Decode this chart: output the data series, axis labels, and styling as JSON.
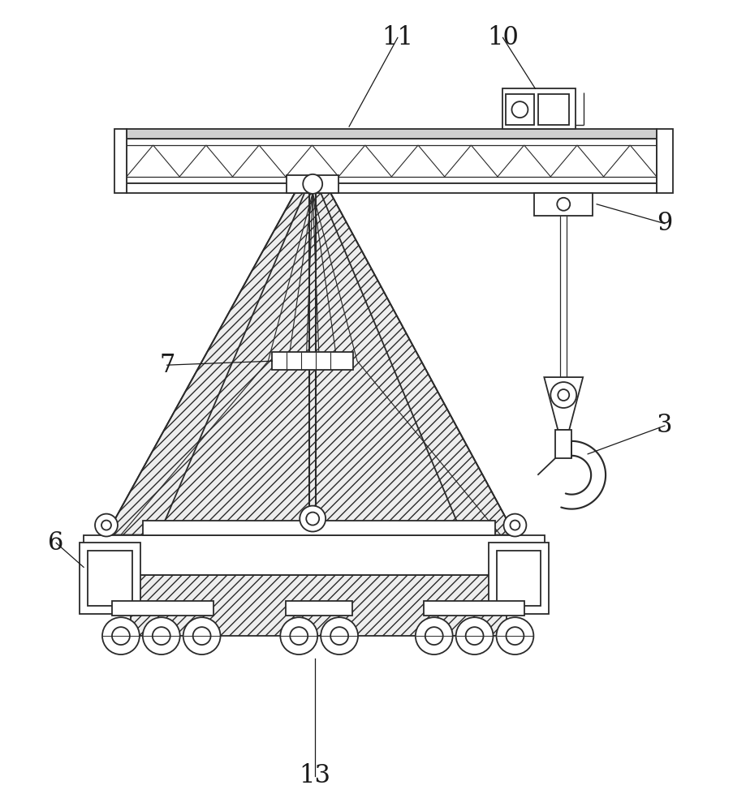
{
  "bg_color": "#ffffff",
  "line_color": "#2a2a2a",
  "label_color": "#1a1a1a",
  "label_fontsize": 22,
  "line_width": 1.3,
  "ann_lw": 0.9
}
